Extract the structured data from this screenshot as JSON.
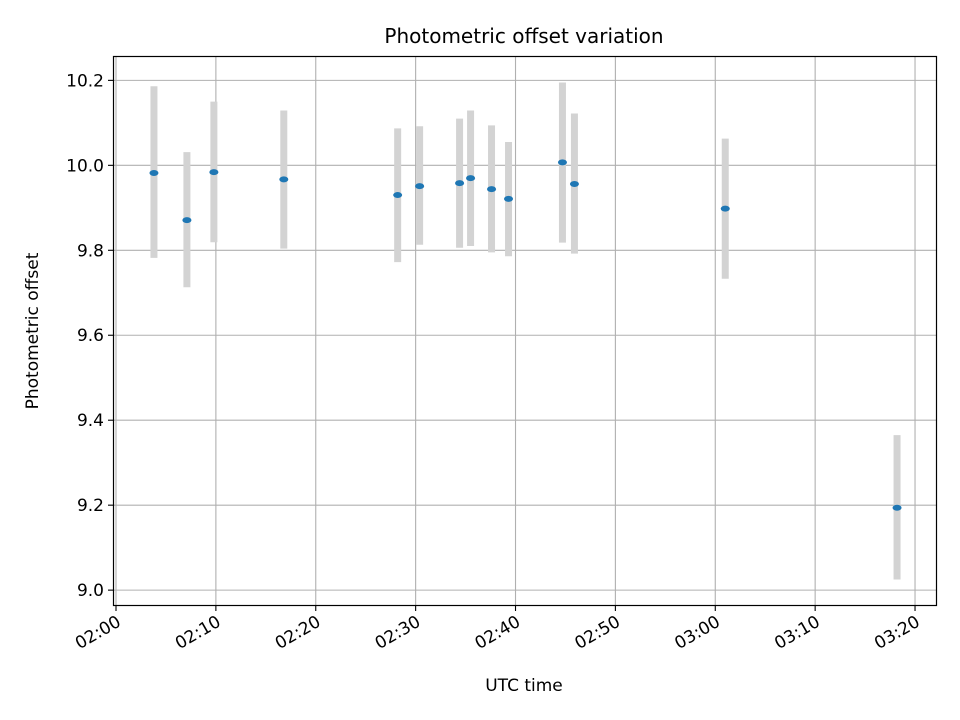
{
  "chart_data": {
    "type": "scatter",
    "title": "Photometric offset variation",
    "xlabel": "UTC time",
    "ylabel": "Photometric offset",
    "x_ticks": [
      "02:00",
      "02:10",
      "02:20",
      "02:30",
      "02:40",
      "02:50",
      "03:00",
      "03:10",
      "03:20"
    ],
    "y_ticks": [
      "9.0",
      "9.2",
      "9.4",
      "9.6",
      "9.8",
      "10.0",
      "10.2"
    ],
    "xlim": [
      "01:59.8",
      "03:22.1"
    ],
    "ylim": [
      8.965,
      10.255
    ],
    "grid": true,
    "legend": "none",
    "colors": {
      "point": "#1f77b4",
      "errorbar": "#d3d3d3",
      "grid": "#b0b0b0"
    },
    "series": [
      {
        "points": [
          {
            "x": "02:03.8",
            "y": 9.982,
            "y_low": 9.782,
            "y_high": 10.186
          },
          {
            "x": "02:07.1",
            "y": 9.871,
            "y_low": 9.713,
            "y_high": 10.031
          },
          {
            "x": "02:09.8",
            "y": 9.984,
            "y_low": 9.819,
            "y_high": 10.15
          },
          {
            "x": "02:16.8",
            "y": 9.967,
            "y_low": 9.804,
            "y_high": 10.129
          },
          {
            "x": "02:28.2",
            "y": 9.93,
            "y_low": 9.772,
            "y_high": 10.087
          },
          {
            "x": "02:30.4",
            "y": 9.951,
            "y_low": 9.813,
            "y_high": 10.092
          },
          {
            "x": "02:34.4",
            "y": 9.958,
            "y_low": 9.806,
            "y_high": 10.11
          },
          {
            "x": "02:35.5",
            "y": 9.97,
            "y_low": 9.81,
            "y_high": 10.129
          },
          {
            "x": "02:37.6",
            "y": 9.944,
            "y_low": 9.795,
            "y_high": 10.094
          },
          {
            "x": "02:39.3",
            "y": 9.921,
            "y_low": 9.786,
            "y_high": 10.055
          },
          {
            "x": "02:44.7",
            "y": 10.007,
            "y_low": 9.818,
            "y_high": 10.195
          },
          {
            "x": "02:45.9",
            "y": 9.956,
            "y_low": 9.792,
            "y_high": 10.122
          },
          {
            "x": "03:01.0",
            "y": 9.898,
            "y_low": 9.733,
            "y_high": 10.063
          },
          {
            "x": "03:18.2",
            "y": 9.194,
            "y_low": 9.025,
            "y_high": 9.365
          }
        ]
      }
    ]
  }
}
